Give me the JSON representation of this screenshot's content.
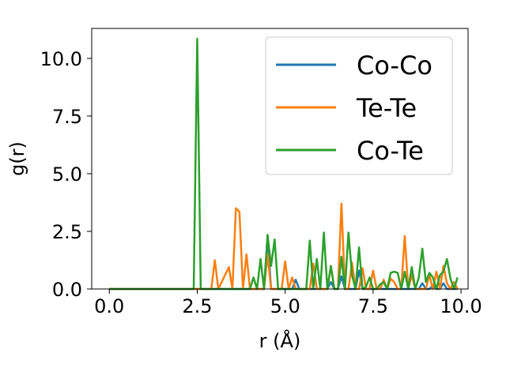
{
  "chart_data": {
    "type": "line",
    "xlabel": "r (Å)",
    "ylabel": "g(r)",
    "xlim": [
      -0.5,
      10.2
    ],
    "ylim": [
      0,
      11.3
    ],
    "xticks": [
      0.0,
      2.5,
      5.0,
      7.5,
      10.0
    ],
    "xtick_labels": [
      "0.0",
      "2.5",
      "5.0",
      "7.5",
      "10.0"
    ],
    "yticks": [
      0.0,
      2.5,
      5.0,
      7.5,
      10.0
    ],
    "ytick_labels": [
      "0.0",
      "2.5",
      "5.0",
      "7.5",
      "10.0"
    ],
    "grid": false,
    "legend_position": "top-right",
    "series": [
      {
        "name": "Co-Co",
        "color": "#1f77b4",
        "x": [
          0.0,
          4.0,
          4.1,
          4.2,
          4.3,
          4.4,
          4.5,
          4.6,
          5.2,
          5.3,
          5.4,
          6.2,
          6.3,
          6.4,
          6.5,
          6.6,
          6.7,
          7.0,
          7.1,
          7.2,
          8.8,
          8.9,
          9.0,
          9.1,
          9.2,
          9.3,
          9.4,
          9.5,
          9.6,
          9.7,
          9.9
        ],
        "y": [
          0.0,
          0.0,
          0.0,
          0.0,
          0.0,
          0.0,
          2.3,
          0.0,
          0.0,
          0.4,
          0.0,
          0.0,
          0.3,
          0.0,
          0.0,
          0.55,
          0.0,
          0.0,
          0.8,
          0.0,
          0.0,
          0.25,
          0.0,
          0.0,
          0.15,
          0.0,
          0.0,
          0.25,
          0.0,
          0.0,
          0.0
        ]
      },
      {
        "name": "Te-Te",
        "color": "#ff7f0e",
        "x": [
          0.0,
          2.9,
          3.0,
          3.1,
          3.4,
          3.5,
          3.6,
          3.7,
          3.8,
          3.9,
          4.0,
          4.1,
          4.4,
          4.5,
          4.6,
          4.8,
          4.9,
          5.0,
          5.1,
          5.2,
          5.3,
          5.4,
          5.7,
          5.8,
          5.9,
          6.0,
          6.2,
          6.3,
          6.4,
          6.5,
          6.6,
          6.7,
          6.8,
          6.9,
          7.0,
          7.1,
          7.2,
          7.3,
          7.4,
          7.5,
          7.6,
          7.7,
          7.8,
          7.9,
          8.0,
          8.1,
          8.2,
          8.3,
          8.4,
          8.5,
          8.6,
          8.7,
          8.8,
          8.9,
          9.0,
          9.1,
          9.2,
          9.3,
          9.4,
          9.5,
          9.6,
          9.7,
          9.8,
          9.9
        ],
        "y": [
          0.0,
          0.0,
          1.25,
          0.0,
          0.95,
          0.0,
          3.5,
          3.35,
          0.0,
          1.5,
          0.0,
          0.0,
          0.0,
          1.5,
          0.0,
          0.0,
          0.0,
          1.2,
          0.0,
          0.5,
          0.0,
          0.0,
          0.0,
          1.1,
          0.0,
          0.0,
          0.0,
          1.0,
          0.0,
          0.0,
          3.7,
          0.0,
          0.0,
          1.15,
          0.0,
          0.0,
          0.9,
          0.0,
          0.0,
          0.8,
          0.0,
          0.0,
          0.4,
          0.0,
          0.45,
          0.3,
          0.0,
          0.0,
          2.3,
          0.0,
          0.6,
          0.0,
          0.0,
          0.0,
          0.0,
          0.6,
          0.0,
          0.75,
          0.0,
          1.0,
          0.25,
          0.0,
          0.3,
          0.0
        ]
      },
      {
        "name": "Co-Te",
        "color": "#2ca02c",
        "x": [
          0.0,
          2.4,
          2.5,
          2.6,
          4.0,
          4.1,
          4.2,
          4.3,
          4.4,
          4.5,
          4.6,
          4.7,
          4.8,
          5.0,
          5.1,
          5.2,
          5.3,
          5.4,
          5.6,
          5.7,
          5.8,
          5.9,
          6.0,
          6.1,
          6.2,
          6.3,
          6.4,
          6.5,
          6.6,
          6.7,
          6.8,
          6.9,
          7.0,
          7.1,
          7.2,
          7.3,
          7.4,
          7.5,
          7.6,
          7.7,
          7.8,
          7.9,
          8.0,
          8.1,
          8.2,
          8.3,
          8.4,
          8.5,
          8.6,
          8.7,
          8.8,
          8.9,
          9.0,
          9.1,
          9.2,
          9.3,
          9.4,
          9.5,
          9.6,
          9.7,
          9.8,
          9.9
        ],
        "y": [
          0.0,
          0.0,
          10.85,
          0.0,
          0.0,
          0.5,
          0.0,
          1.3,
          0.0,
          2.35,
          1.0,
          2.15,
          0.0,
          0.0,
          0.0,
          0.0,
          0.0,
          0.0,
          0.0,
          2.1,
          0.0,
          1.3,
          0.0,
          2.45,
          0.0,
          1.0,
          0.0,
          0.0,
          1.4,
          0.0,
          2.45,
          0.6,
          0.0,
          1.8,
          0.0,
          0.1,
          0.5,
          0.0,
          0.0,
          0.2,
          0.3,
          0.0,
          0.7,
          0.75,
          0.7,
          0.0,
          0.75,
          0.0,
          0.95,
          0.0,
          0.5,
          1.75,
          0.3,
          0.7,
          0.5,
          0.0,
          0.6,
          0.75,
          1.3,
          0.45,
          0.0,
          0.5
        ]
      }
    ]
  }
}
